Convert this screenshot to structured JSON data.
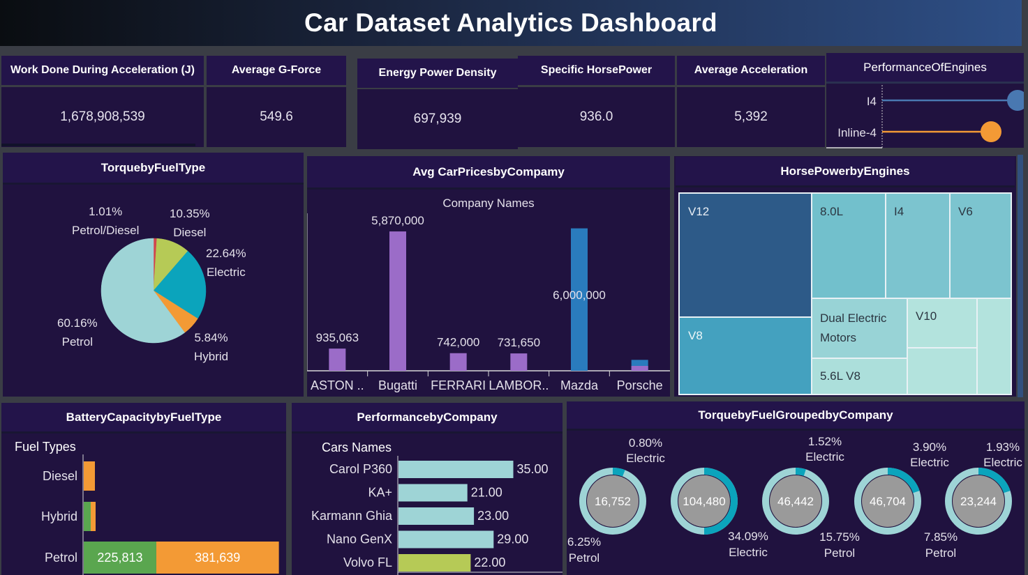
{
  "header": {
    "title": "Car Dataset Analytics Dashboard"
  },
  "kpis": [
    {
      "label": "Work Done During Acceleration (J)",
      "value": "1,678,908,539"
    },
    {
      "label": "Average G-Force",
      "value": "549.6"
    },
    {
      "label": "Energy Power Density",
      "value": "697,939"
    },
    {
      "label": "Specific HorsePower",
      "value": "936.0"
    },
    {
      "label": "Average Acceleration",
      "value": "5,392"
    }
  ],
  "colors": {
    "bg": "#20123f",
    "purple": "#9b6cc8",
    "blue": "#2a7bbd",
    "teal": "#0ba4bc",
    "lightteal": "#9ed4d6",
    "orange": "#f39a35",
    "green": "#5aa64f",
    "lime": "#b6ca56",
    "red": "#d0464f"
  },
  "chart_data": [
    {
      "id": "performance_engines",
      "type": "scatter",
      "title": "PerformanceOfEngines",
      "categories": [
        "I4",
        "Inline-4"
      ],
      "values": [
        0.97,
        0.78
      ],
      "colors": [
        "#4978b1",
        "#f39a35"
      ]
    },
    {
      "id": "torque_fuel",
      "type": "pie",
      "title": "TorquebyFuelType",
      "slices": [
        {
          "label": "Petrol/Diesel",
          "pct_label": "1.01%",
          "value": 1.01,
          "color": "#d0464f"
        },
        {
          "label": "Diesel",
          "pct_label": "10.35%",
          "value": 10.35,
          "color": "#b6ca56"
        },
        {
          "label": "Electric",
          "pct_label": "22.64%",
          "value": 22.64,
          "color": "#0ba4bc"
        },
        {
          "label": "Hybrid",
          "pct_label": "5.84%",
          "value": 5.84,
          "color": "#f39a35"
        },
        {
          "label": "Petrol",
          "pct_label": "60.16%",
          "value": 60.16,
          "color": "#9ed4d6"
        }
      ]
    },
    {
      "id": "avg_prices",
      "type": "bar",
      "title": "Avg CarPricesbyCompamy",
      "xlabel": "Company Names",
      "categories": [
        "ASTON ..",
        "Bugatti",
        "FERRARI",
        "LAMBOR..",
        "Mazda",
        "Porsche"
      ],
      "values": [
        935063,
        5870000,
        742000,
        731650,
        6000000,
        460000
      ],
      "labels": [
        "935,063",
        "5,870,000",
        "742,000",
        "731,650",
        "6,000,000",
        ""
      ],
      "colors": [
        "#9b6cc8",
        "#9b6cc8",
        "#9b6cc8",
        "#9b6cc8",
        "#2a7bbd",
        "#2a7bbd"
      ],
      "ylim": [
        0,
        6400000
      ]
    },
    {
      "id": "hp_engines",
      "type": "heatmap",
      "title": "HorsePowerbyEngines",
      "cells": [
        {
          "label": "V12",
          "color": "#2d5a88"
        },
        {
          "label": "V8",
          "color": "#44a1bf"
        },
        {
          "label": "8.0L",
          "color": "#72c0cc"
        },
        {
          "label": "I4",
          "color": "#7cc4cf"
        },
        {
          "label": "V6",
          "color": "#7cc4cf"
        },
        {
          "label": "Dual Electric Motors",
          "color": "#98d3d6"
        },
        {
          "label": "5.6L V8",
          "color": "#acdfdb"
        },
        {
          "label": "V10",
          "color": "#b3e3dd"
        },
        {
          "label": "",
          "color": "#b3e3dd"
        },
        {
          "label": "",
          "color": "#b3e3dd"
        }
      ]
    },
    {
      "id": "battery_fuel",
      "type": "bar",
      "title": "BatteryCapacitybyFuelType",
      "ylabel": "Fuel Types",
      "categories": [
        "Diesel",
        "Hybrid",
        "Petrol"
      ],
      "series": [
        {
          "values": [
            0,
            6000,
            0
          ],
          "color": "#5aa64f",
          "labels": [
            "",
            "",
            "225,813"
          ],
          "data": [
            0,
            6000,
            225813
          ]
        },
        {
          "values": [
            10000,
            12000,
            0
          ],
          "color": "#f39a35",
          "labels": [
            "",
            "",
            "381,639"
          ],
          "data": [
            10000,
            12000,
            381639
          ]
        }
      ],
      "xlim": [
        0,
        630000
      ]
    },
    {
      "id": "perf_company",
      "type": "bar",
      "title": "PerformancebyCompany",
      "ylabel": "Cars Names",
      "categories": [
        "Carol P360",
        "KA+",
        "Karmann Ghia",
        "Nano GenX",
        "Volvo FL"
      ],
      "values": [
        35.0,
        21.0,
        23.0,
        29.0,
        22.0
      ],
      "labels": [
        "35.00",
        "21.00",
        "23.00",
        "29.00",
        "22.00"
      ],
      "colors": [
        "#9ed4d6",
        "#9ed4d6",
        "#9ed4d6",
        "#9ed4d6",
        "#b6ca56"
      ],
      "xlim": [
        0,
        40
      ]
    },
    {
      "id": "torque_company",
      "type": "pie",
      "title": "TorquebyFuelGroupedbyCompany",
      "donuts": [
        {
          "center": "16,752",
          "top_label": [
            "0.80%",
            "Electric"
          ],
          "bottom_label": [
            "6.25%",
            "Petrol"
          ],
          "electric": 0.06
        },
        {
          "center": "104,480",
          "top_label": [
            "",
            ""
          ],
          "bottom_label": [
            "34.09%",
            "Electric"
          ],
          "electric": 0.5
        },
        {
          "center": "46,442",
          "top_label": [
            "1.52%",
            "Electric"
          ],
          "bottom_label": [
            "15.75%",
            "Petrol"
          ],
          "electric": 0.05
        },
        {
          "center": "46,704",
          "top_label": [
            "3.90%",
            "Electric"
          ],
          "bottom_label": [
            "7.85%",
            "Petrol"
          ],
          "electric": 0.2
        },
        {
          "center": "23,244",
          "top_label": [
            "1.93%",
            "Electric"
          ],
          "bottom_label": [
            "",
            ""
          ],
          "electric": 0.2
        }
      ]
    }
  ]
}
